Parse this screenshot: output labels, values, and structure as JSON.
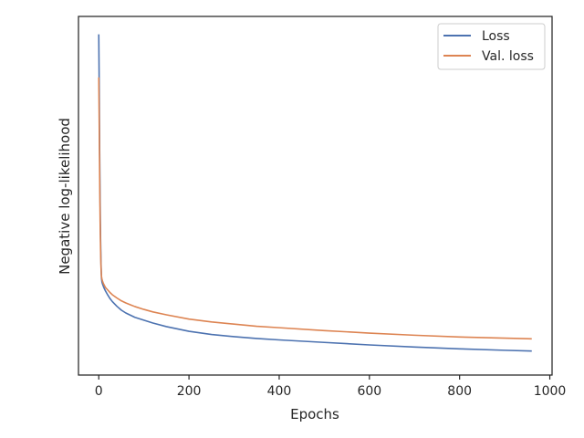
{
  "chart_data": {
    "type": "line",
    "title": "",
    "xlabel": "Epochs",
    "ylabel": "Negative log-likelihood",
    "xlim": [
      -45,
      1005
    ],
    "ylim": [
      0,
      100
    ],
    "xticks": [
      0,
      200,
      400,
      600,
      800,
      1000
    ],
    "yticks_shown": false,
    "grid": false,
    "legend_position": "top-right",
    "series": [
      {
        "name": "Loss",
        "color": "#4c72b0",
        "x": [
          0,
          1,
          2,
          3,
          4,
          5,
          6,
          7,
          8,
          10,
          12,
          15,
          20,
          25,
          30,
          40,
          50,
          60,
          70,
          80,
          100,
          120,
          150,
          200,
          250,
          300,
          350,
          400,
          500,
          600,
          700,
          800,
          900,
          960
        ],
        "y": [
          95,
          80,
          62,
          48,
          38,
          31,
          27,
          26,
          25.5,
          24.8,
          24.2,
          23.4,
          22.3,
          21.3,
          20.5,
          19.2,
          18.1,
          17.3,
          16.7,
          16.1,
          15.3,
          14.5,
          13.5,
          12.2,
          11.3,
          10.7,
          10.2,
          9.8,
          9.1,
          8.4,
          7.8,
          7.3,
          6.9,
          6.7
        ]
      },
      {
        "name": "Val. loss",
        "color": "#dd8452",
        "x": [
          0,
          1,
          2,
          3,
          4,
          5,
          6,
          7,
          8,
          10,
          12,
          15,
          20,
          25,
          30,
          40,
          50,
          60,
          70,
          80,
          100,
          120,
          150,
          200,
          250,
          300,
          350,
          400,
          500,
          600,
          700,
          800,
          900,
          960
        ],
        "y": [
          83,
          70,
          55,
          43,
          35,
          30,
          27.5,
          26.8,
          26.3,
          25.6,
          25.1,
          24.4,
          23.7,
          23,
          22.4,
          21.5,
          20.7,
          20.1,
          19.6,
          19.1,
          18.3,
          17.6,
          16.8,
          15.6,
          14.8,
          14.2,
          13.6,
          13.2,
          12.4,
          11.7,
          11.1,
          10.6,
          10.3,
          10.1
        ]
      }
    ]
  }
}
